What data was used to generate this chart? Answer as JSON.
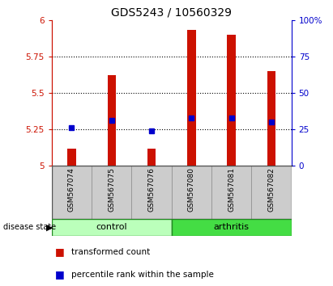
{
  "title": "GDS5243 / 10560329",
  "samples": [
    "GSM567074",
    "GSM567075",
    "GSM567076",
    "GSM567080",
    "GSM567081",
    "GSM567082"
  ],
  "groups": [
    "control",
    "control",
    "control",
    "arthritis",
    "arthritis",
    "arthritis"
  ],
  "bar_bottoms": [
    5.0,
    5.0,
    5.0,
    5.0,
    5.0,
    5.0
  ],
  "bar_tops": [
    5.12,
    5.62,
    5.12,
    5.93,
    5.9,
    5.65
  ],
  "percentile_values": [
    5.26,
    5.31,
    5.24,
    5.33,
    5.33,
    5.3
  ],
  "ylim_left": [
    5.0,
    6.0
  ],
  "ylim_right": [
    0,
    100
  ],
  "yticks_left": [
    5.0,
    5.25,
    5.5,
    5.75,
    6.0
  ],
  "yticks_right": [
    0,
    25,
    50,
    75,
    100
  ],
  "ytick_labels_left": [
    "5",
    "5.25",
    "5.5",
    "5.75",
    "6"
  ],
  "ytick_labels_right": [
    "0",
    "25",
    "50",
    "75",
    "100%"
  ],
  "bar_color": "#cc1100",
  "dot_color": "#0000cc",
  "control_color": "#bbffbb",
  "arthritis_color": "#44dd44",
  "axis_left_color": "#cc1100",
  "axis_right_color": "#0000cc",
  "background_xticklabel": "#cccccc",
  "bar_width": 0.6,
  "title_fontsize": 10
}
